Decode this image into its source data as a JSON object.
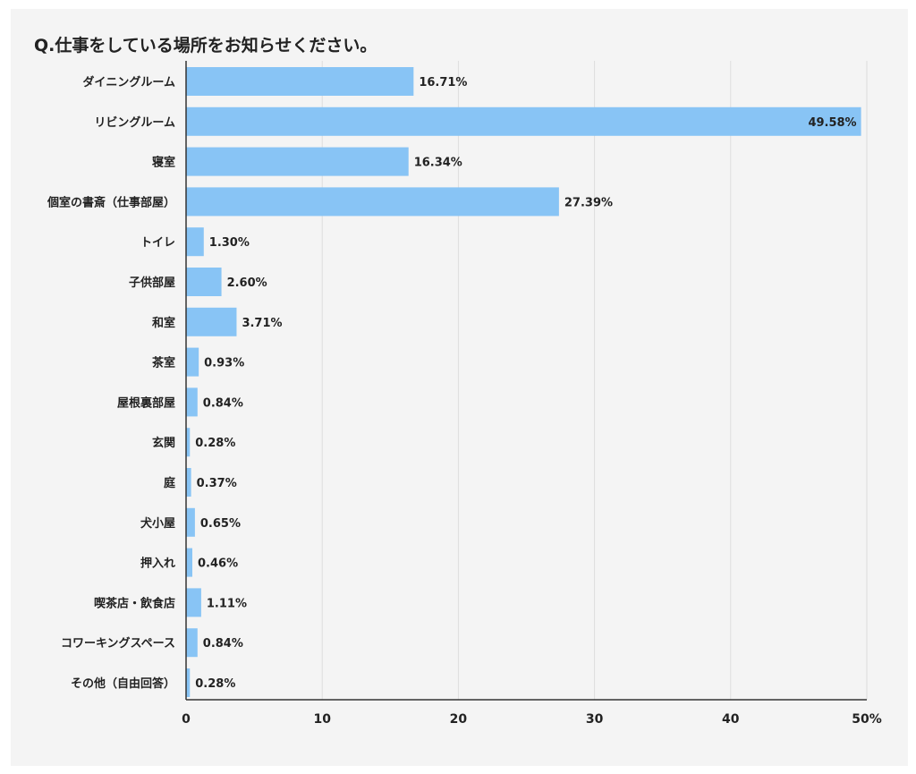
{
  "chart_data": {
    "type": "bar",
    "orientation": "horizontal",
    "title": "Q.仕事をしている場所をお知らせください。",
    "categories": [
      "ダイニングルーム",
      "リビングルーム",
      "寝室",
      "個室の書斎（仕事部屋）",
      "トイレ",
      "子供部屋",
      "和室",
      "茶室",
      "屋根裏部屋",
      "玄関",
      "庭",
      "犬小屋",
      "押入れ",
      "喫茶店・飲食店",
      "コワーキングスペース",
      "その他（自由回答）"
    ],
    "values": [
      16.71,
      49.58,
      16.34,
      27.39,
      1.3,
      2.6,
      3.71,
      0.93,
      0.84,
      0.28,
      0.37,
      0.65,
      0.46,
      1.11,
      0.84,
      0.28
    ],
    "value_labels": [
      "16.71%",
      "49.58%",
      "16.34%",
      "27.39%",
      "1.30%",
      "2.60%",
      "3.71%",
      "0.93%",
      "0.84%",
      "0.28%",
      "0.37%",
      "0.65%",
      "0.46%",
      "1.11%",
      "0.84%",
      "0.28%"
    ],
    "x_ticks": [
      "0",
      "10",
      "20",
      "30",
      "40",
      "50%"
    ],
    "xlim": [
      0,
      50
    ],
    "grid": true,
    "bar_color": "#88c4f5",
    "grid_color": "#dddddd",
    "axis_color": "#333333"
  }
}
